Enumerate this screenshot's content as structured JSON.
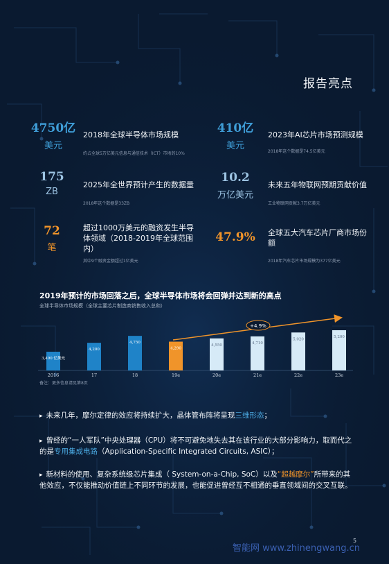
{
  "header": {
    "title": "报告亮点"
  },
  "stats": [
    {
      "big": "4750亿",
      "unit": "美元",
      "title": "2018年全球半导体市场规模",
      "sub": "约占全球5万亿美元信息与通信技术（ICT）市场的10%",
      "color": "#3f9ed8"
    },
    {
      "big": "410亿",
      "unit": "美元",
      "title": "2023年AI芯片市场预测规模",
      "sub": "2018年这个数据是74.5亿美元",
      "color": "#3f9ed8"
    },
    {
      "big": "175",
      "unit": "ZB",
      "title": "2025年全世界预计产生的数据量",
      "sub": "2018年这个数据是33ZB",
      "color": "#9cc3e2"
    },
    {
      "big": "10.2",
      "unit": "万亿美元",
      "title": "未来五年物联网预期贡献价值",
      "sub": "工业物联网贡献3.7万亿美元",
      "color": "#9cc3e2"
    },
    {
      "big": "72",
      "unit": "笔",
      "title": "超过1000万美元的融资发生半导体领域（2018-2019年全球范围内）",
      "sub": "其中9个融资金额超过1亿美元",
      "color": "#f0942a"
    },
    {
      "big": "47.9%",
      "unit": "",
      "title": "全球五大汽车芯片厂商市场份额",
      "sub": "2018年汽车芯片市场规模为377亿美元",
      "color": "#f0942a"
    }
  ],
  "chart_data": {
    "type": "bar",
    "title": "2019年预计的市场回落之后，全球半导体市场将会回弹并达到新的高点",
    "subtitle": "全球半导体市场规模（全球主要芯片制造商销售收入总和）",
    "categories": [
      "2016",
      "17",
      "18",
      "19e",
      "20e",
      "21e",
      "22e",
      "23e"
    ],
    "values": [
      3490,
      4200,
      4750,
      4290,
      4550,
      4710,
      5020,
      5200
    ],
    "data_labels": [
      "3,490 亿美元",
      "4,200",
      "4,750",
      "4,290",
      "4,550",
      "4,710",
      "5,020",
      "5,200"
    ],
    "bar_colors": [
      "#1f83c8",
      "#1f83c8",
      "#1f83c8",
      "#f0942a",
      "#d6eaf7",
      "#d6eaf7",
      "#d6eaf7",
      "#d6eaf7"
    ],
    "annotation": "+4.9%",
    "note": "备注：更多信息请见第8页"
  },
  "bullets": [
    {
      "pre": "未来几年，摩尔定律的效应将持续扩大，晶体管布阵将呈现",
      "hl": "三维形态",
      "post": "；"
    },
    {
      "pre": "曾经的“一人军队”中央处理器（CPU）将不可避免地失去其在该行业的大部分影响力，取而代之的是",
      "hl": "专用集成电路",
      "post": "（Application-Specific Integrated Circuits, ASIC）；"
    },
    {
      "pre": "新材料的使用、复杂系统级芯片集成（ System-on-a-Chip, SoC）以及",
      "hl": "“超越摩尔”",
      "post": "所带来的其他效应，不仅能推动价值链上不同环节的发展，也能促进曾经互不相通的垂直领域间的交叉互联。"
    }
  ],
  "footer": {
    "page": "5",
    "watermark": "智能网 www.zhinengwang.cn"
  }
}
